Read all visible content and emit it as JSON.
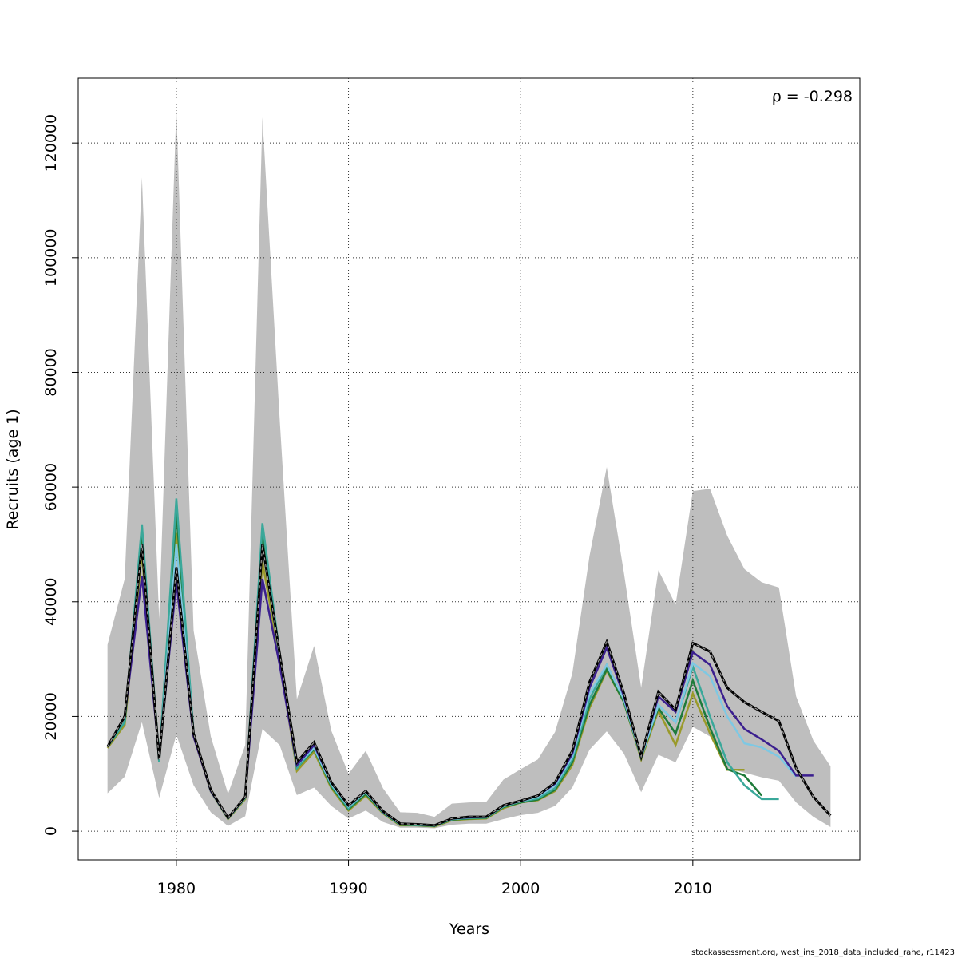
{
  "chart_data": {
    "type": "line",
    "x": [
      1976,
      1977,
      1978,
      1979,
      1980,
      1981,
      1982,
      1983,
      1984,
      1985,
      1986,
      1987,
      1988,
      1989,
      1990,
      1991,
      1992,
      1993,
      1994,
      1995,
      1996,
      1997,
      1998,
      1999,
      2000,
      2001,
      2002,
      2003,
      2004,
      2005,
      2006,
      2007,
      2008,
      2009,
      2010,
      2011,
      2012,
      2013,
      2014,
      2015,
      2016,
      2017,
      2018
    ],
    "xlabel": "Years",
    "ylabel": "Recruits (age 1)",
    "annotation": "ρ = -0.298",
    "footer": "stockassessment.org, west_ins_2018_data_included_rahe, r11423",
    "xlim": [
      1974.3,
      2019.7
    ],
    "ylim": [
      -5000,
      131300
    ],
    "xticks": [
      1980,
      1990,
      2000,
      2010
    ],
    "yticks": [
      0,
      20000,
      40000,
      60000,
      80000,
      100000,
      120000
    ],
    "grid": true,
    "band": {
      "color": "#bebebe",
      "upper": [
        32500,
        44000,
        114000,
        37000,
        126000,
        35000,
        16500,
        6500,
        15000,
        124500,
        72000,
        23000,
        32300,
        17500,
        10000,
        14000,
        7500,
        3300,
        3200,
        2500,
        4800,
        5000,
        5100,
        9000,
        10800,
        12500,
        17300,
        27500,
        48000,
        63500,
        45000,
        25000,
        45500,
        39500,
        59300,
        59700,
        51500,
        45700,
        43400,
        42500,
        23500,
        15800,
        11300
      ],
      "lower": [
        6600,
        9500,
        19000,
        5800,
        16800,
        8000,
        3300,
        900,
        2600,
        17800,
        15000,
        6300,
        7600,
        4400,
        2200,
        3600,
        1600,
        600,
        600,
        500,
        1100,
        1300,
        1300,
        2100,
        2800,
        3200,
        4400,
        7600,
        14200,
        17400,
        13500,
        6800,
        13300,
        12000,
        18200,
        16500,
        11000,
        10200,
        9400,
        8800,
        5000,
        2500,
        700
      ]
    },
    "series": [
      {
        "color": "#9a9a2a",
        "values": [
          14500,
          18500,
          48500,
          12500,
          52000,
          16500,
          6900,
          2100,
          5600,
          47000,
          30000,
          10500,
          13800,
          7500,
          3600,
          6200,
          3100,
          1000,
          1000,
          800,
          1900,
          2100,
          2200,
          4000,
          5000,
          5400,
          7000,
          11500,
          21500,
          28000,
          22500,
          12500,
          21000,
          15000,
          24000,
          17000,
          10700,
          10700,
          null,
          null,
          null,
          null,
          null
        ]
      },
      {
        "color": "#1e7b3a",
        "values": [
          14700,
          19000,
          52000,
          12500,
          55500,
          17000,
          7000,
          2200,
          5800,
          51500,
          30500,
          11000,
          14300,
          7800,
          3800,
          6500,
          3200,
          1100,
          1000,
          900,
          2000,
          2200,
          2300,
          4200,
          5000,
          5500,
          7200,
          12000,
          22000,
          28200,
          22500,
          12800,
          21500,
          17000,
          26300,
          18000,
          10800,
          9700,
          6200,
          null,
          null,
          null,
          null
        ]
      },
      {
        "color": "#3aa89a",
        "values": [
          14700,
          19000,
          53500,
          12000,
          58000,
          17000,
          7000,
          2200,
          5800,
          53700,
          31000,
          11000,
          14500,
          8000,
          4000,
          6800,
          3300,
          1200,
          1100,
          900,
          2100,
          2300,
          2400,
          4300,
          5200,
          5700,
          7500,
          12500,
          23000,
          29000,
          23000,
          12800,
          22000,
          19000,
          28700,
          20000,
          12000,
          8000,
          5600,
          5600,
          null,
          null,
          null
        ]
      },
      {
        "color": "#7ec8e3",
        "values": [
          14700,
          20000,
          50000,
          12500,
          50000,
          17000,
          7000,
          2200,
          5900,
          50000,
          30500,
          11500,
          14500,
          8200,
          4300,
          6800,
          3400,
          1200,
          1100,
          1000,
          2100,
          2400,
          2400,
          4400,
          5200,
          6000,
          8000,
          13000,
          24000,
          29000,
          23000,
          12900,
          22000,
          19000,
          29300,
          27000,
          20000,
          15300,
          14600,
          13000,
          9500,
          null,
          null
        ]
      },
      {
        "color": "#3b1f8f",
        "values": [
          14700,
          20000,
          44500,
          13000,
          43500,
          16500,
          7000,
          2300,
          6000,
          44000,
          29000,
          11500,
          15000,
          8500,
          4500,
          7000,
          3400,
          1300,
          1200,
          1000,
          2200,
          2400,
          2500,
          4500,
          5300,
          6200,
          8300,
          13500,
          25000,
          32000,
          23500,
          13000,
          23500,
          20800,
          31200,
          29000,
          21800,
          17800,
          16000,
          14000,
          9700,
          9700,
          null
        ]
      },
      {
        "color": "#000000",
        "dashed": true,
        "values": [
          14700,
          20000,
          50000,
          12500,
          46000,
          17000,
          7200,
          2300,
          6000,
          50000,
          31000,
          12000,
          15500,
          8500,
          4500,
          7000,
          3500,
          1300,
          1200,
          1000,
          2200,
          2500,
          2500,
          4500,
          5300,
          6200,
          8500,
          14000,
          26000,
          33000,
          24000,
          13000,
          24300,
          21200,
          32800,
          31300,
          25000,
          22500,
          20800,
          19200,
          11000,
          6000,
          2700
        ]
      }
    ]
  }
}
